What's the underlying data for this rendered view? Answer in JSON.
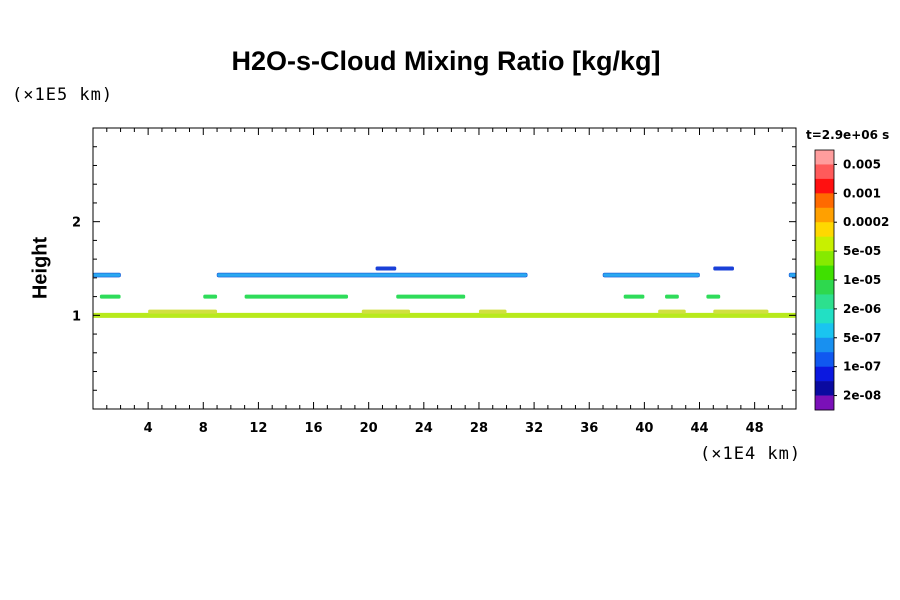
{
  "chart_data": {
    "type": "heatmap",
    "title": "H2O-s-Cloud Mixing Ratio [kg/kg]",
    "ylabel": "Height",
    "y_unit": "(×1E5 km)",
    "x_unit": "(×1E4 km)",
    "time_label": "t=2.9e+06 s",
    "xlim": [
      0,
      51
    ],
    "ylim": [
      0,
      3
    ],
    "x_ticks": [
      4,
      8,
      12,
      16,
      20,
      24,
      28,
      32,
      36,
      40,
      44,
      48
    ],
    "y_ticks": [
      1,
      2
    ],
    "colorbar": {
      "labels": [
        "0.005",
        "0.001",
        "0.0002",
        "5e-05",
        "1e-05",
        "2e-06",
        "5e-07",
        "1e-07",
        "2e-08"
      ],
      "colors": [
        "#ff9d9d",
        "#ff5a5a",
        "#ff1010",
        "#ff6a00",
        "#ffa000",
        "#ffd800",
        "#c8f000",
        "#86ea00",
        "#3fe000",
        "#2ed84e",
        "#2de08e",
        "#22e0c4",
        "#1ac4f0",
        "#1890f0",
        "#1058f0",
        "#0b18e0",
        "#0a0aa0",
        "#7a10b8"
      ]
    },
    "bands": [
      {
        "y": 1.0,
        "color": "#b8ea1c",
        "segments": [
          [
            0,
            51
          ]
        ]
      },
      {
        "y": 1.04,
        "color": "#d0e040",
        "segments": [
          [
            4,
            9
          ],
          [
            19.5,
            23
          ],
          [
            28,
            30
          ],
          [
            41,
            43
          ],
          [
            45,
            49
          ]
        ]
      },
      {
        "y": 1.2,
        "color": "#2edc5a",
        "segments": [
          [
            0.5,
            2
          ],
          [
            8,
            9
          ],
          [
            11,
            18.5
          ],
          [
            22,
            27
          ],
          [
            38.5,
            40
          ],
          [
            41.5,
            42.5
          ],
          [
            44.5,
            45.5
          ]
        ]
      },
      {
        "y": 1.43,
        "color": "#2aa8f0",
        "segments": [
          [
            0,
            2
          ],
          [
            9,
            31.5
          ],
          [
            37,
            44
          ],
          [
            50.5,
            51
          ]
        ]
      },
      {
        "y": 1.5,
        "color": "#1a40d8",
        "segments": [
          [
            20.5,
            22
          ],
          [
            45,
            46.5
          ]
        ]
      }
    ]
  }
}
